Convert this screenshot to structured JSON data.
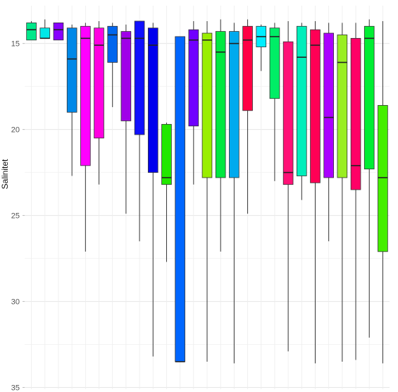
{
  "chart_data": {
    "type": "boxplot",
    "ylabel": "Salinitet",
    "xlabel": "",
    "y_reversed": true,
    "ylim": [
      12.8,
      35.1
    ],
    "yticks": [
      15,
      20,
      25,
      30,
      35
    ],
    "grid": true,
    "legend": "none",
    "series": [
      {
        "color": "#00e88a",
        "whisker_low": 13.7,
        "q1": 13.8,
        "median": 14.2,
        "q3": 14.8,
        "whisker_high": 14.8
      },
      {
        "color": "#00e8e8",
        "whisker_low": 13.6,
        "q1": 14.1,
        "median": 14.7,
        "q3": 14.7,
        "whisker_high": 14.7
      },
      {
        "color": "#8800ff",
        "whisker_low": 13.8,
        "q1": 13.8,
        "median": 14.2,
        "q3": 14.8,
        "whisker_high": 14.8
      },
      {
        "color": "#0088e8",
        "whisker_low": 13.9,
        "q1": 14.1,
        "median": 15.9,
        "q3": 19.0,
        "whisker_high": 22.7
      },
      {
        "color": "#ff00ff",
        "whisker_low": 13.8,
        "q1": 14.0,
        "median": 14.7,
        "q3": 22.1,
        "whisker_high": 27.1
      },
      {
        "color": "#ff00e0",
        "whisker_low": 13.7,
        "q1": 14.1,
        "median": 15.1,
        "q3": 20.5,
        "whisker_high": 23.2
      },
      {
        "color": "#0066ee",
        "whisker_low": 13.8,
        "q1": 14.0,
        "median": 14.5,
        "q3": 16.1,
        "whisker_high": 18.7
      },
      {
        "color": "#a000e8",
        "whisker_low": 13.9,
        "q1": 14.3,
        "median": 14.7,
        "q3": 19.5,
        "whisker_high": 24.9
      },
      {
        "color": "#1010ff",
        "whisker_low": 13.7,
        "q1": 13.7,
        "median": 14.7,
        "q3": 20.3,
        "whisker_high": 26.5
      },
      {
        "color": "#0000ee",
        "whisker_low": 13.8,
        "q1": 14.1,
        "median": 15.1,
        "q3": 22.5,
        "whisker_high": 33.2
      },
      {
        "color": "#22e800",
        "whisker_low": 19.6,
        "q1": 19.7,
        "median": 22.8,
        "q3": 23.2,
        "whisker_high": 27.7
      },
      {
        "color": "#0066ff",
        "whisker_low": 14.6,
        "q1": 14.6,
        "median": 33.5,
        "q3": 33.5,
        "whisker_high": 33.5
      },
      {
        "color": "#7000ff",
        "whisker_low": 13.7,
        "q1": 14.2,
        "median": 14.8,
        "q3": 19.8,
        "whisker_high": 23.2
      },
      {
        "color": "#99ee00",
        "whisker_low": 13.7,
        "q1": 14.4,
        "median": 14.8,
        "q3": 22.8,
        "whisker_high": 33.5
      },
      {
        "color": "#00e840",
        "whisker_low": 13.6,
        "q1": 14.3,
        "median": 15.5,
        "q3": 22.8,
        "whisker_high": 27.1
      },
      {
        "color": "#00aaee",
        "whisker_low": 13.8,
        "q1": 14.3,
        "median": 15.0,
        "q3": 22.8,
        "whisker_high": 33.6
      },
      {
        "color": "#ff0044",
        "whisker_low": 13.6,
        "q1": 14.0,
        "median": 14.8,
        "q3": 18.9,
        "whisker_high": 24.9
      },
      {
        "color": "#00eeff",
        "whisker_low": 13.9,
        "q1": 14.0,
        "median": 14.6,
        "q3": 15.2,
        "whisker_high": 16.6
      },
      {
        "color": "#00ee66",
        "whisker_low": 13.8,
        "q1": 14.1,
        "median": 14.6,
        "q3": 18.2,
        "whisker_high": 23.0
      },
      {
        "color": "#ff1177",
        "whisker_low": 13.7,
        "q1": 14.9,
        "median": 22.5,
        "q3": 23.2,
        "whisker_high": 32.9
      },
      {
        "color": "#00eebb",
        "whisker_low": 13.8,
        "q1": 14.0,
        "median": 15.8,
        "q3": 22.7,
        "whisker_high": 24.1
      },
      {
        "color": "#ff0055",
        "whisker_low": 13.7,
        "q1": 14.2,
        "median": 15.1,
        "q3": 23.1,
        "whisker_high": 33.6
      },
      {
        "color": "#aa00ff",
        "whisker_low": 13.8,
        "q1": 14.4,
        "median": 19.3,
        "q3": 22.8,
        "whisker_high": 26.5
      },
      {
        "color": "#99ee22",
        "whisker_low": 13.8,
        "q1": 14.5,
        "median": 16.1,
        "q3": 22.8,
        "whisker_high": 33.5
      },
      {
        "color": "#ff0066",
        "whisker_low": 13.8,
        "q1": 14.7,
        "median": 22.1,
        "q3": 23.5,
        "whisker_high": 33.4
      },
      {
        "color": "#00ee33",
        "whisker_low": 13.6,
        "q1": 14.0,
        "median": 14.7,
        "q3": 22.3,
        "whisker_high": 32.1
      },
      {
        "color": "#44ee00",
        "whisker_low": 13.7,
        "q1": 18.6,
        "median": 22.8,
        "q3": 27.1,
        "whisker_high": 33.6
      }
    ]
  }
}
